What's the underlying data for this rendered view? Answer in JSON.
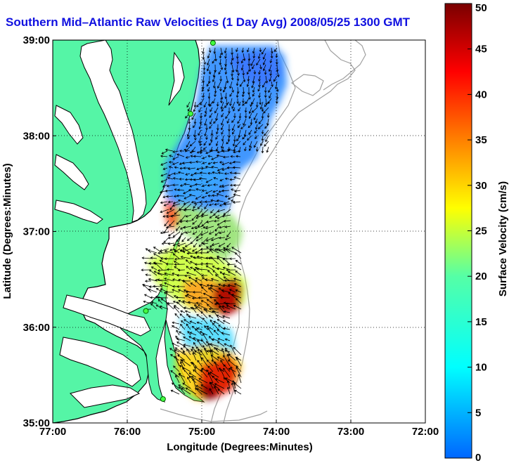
{
  "title": "Southern Mid–Atlantic Raw Velocities (1 Day Avg) 2008/05/25 1300 GMT",
  "map": {
    "xlabel": "Longitude (Degrees:Minutes)",
    "ylabel": "Latitude (Degrees:Minutes)",
    "lon_range": [
      -77,
      -72
    ],
    "lat_range": [
      35,
      39
    ],
    "x_ticks": [
      "77:00",
      "76:00",
      "75:00",
      "74:00",
      "73:00",
      "72:00"
    ],
    "y_ticks": [
      "39:00",
      "38:00",
      "37:00",
      "36:00",
      "35:00"
    ],
    "grid": "dotted",
    "land_color": "#55f5a6",
    "coastline_color": "#000000",
    "bathymetry_color": "#a0a0a0"
  },
  "colorbar": {
    "label": "Surface Velocity (cm/s)",
    "min": 0,
    "max": 50,
    "ticks": [
      "0",
      "5",
      "10",
      "15",
      "20",
      "25",
      "30",
      "35",
      "40",
      "45",
      "50"
    ],
    "colormap": "jet"
  },
  "stations": [
    {
      "lon": -74.85,
      "lat": 38.97
    },
    {
      "lon": -75.15,
      "lat": 38.23
    },
    {
      "lon": -75.75,
      "lat": 36.17
    },
    {
      "lon": -75.52,
      "lat": 35.25
    }
  ]
}
